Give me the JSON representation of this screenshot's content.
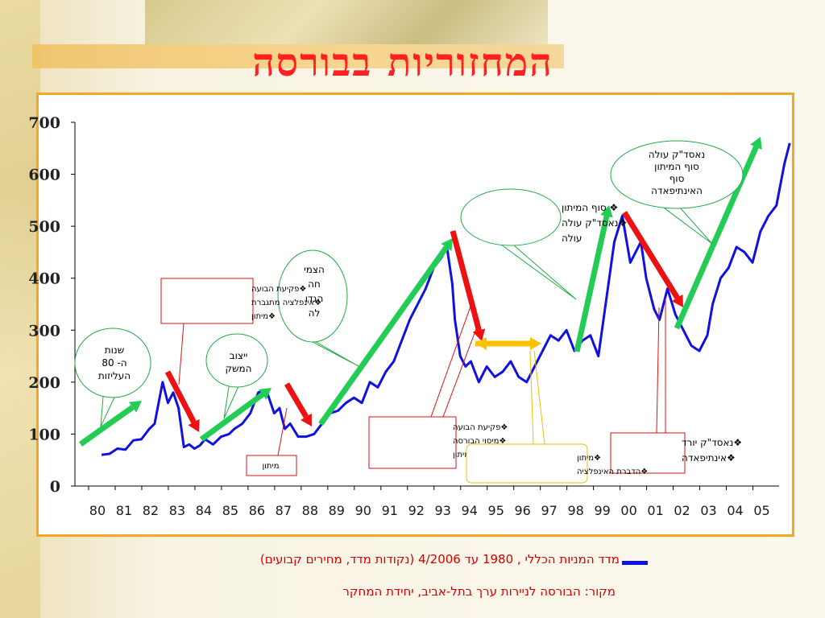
{
  "title": "המחזוריות בבורסה",
  "caption": "מדד המניות הכללי , 1980 עד 4/2006 (נקודות מדד, מחירים קבועים)",
  "source": "מקור: הבורסה לניירות ערך בתל-אביב, יחידת המחקר",
  "colors": {
    "line": "#1010e0",
    "up": "#22cc55",
    "down": "#ee1111",
    "flat": "#ffc000",
    "title": "#ff2020"
  },
  "chart_data": {
    "type": "line",
    "title": "",
    "xlabel": "",
    "ylabel": "",
    "ylim": [
      0,
      700
    ],
    "y_ticks": [
      "0",
      "100",
      "200",
      "300",
      "400",
      "500",
      "600",
      "700"
    ],
    "x_ticks": [
      "80",
      "81",
      "82",
      "83",
      "84",
      "85",
      "86",
      "87",
      "88",
      "89",
      "90",
      "91",
      "92",
      "93",
      "94",
      "95",
      "96",
      "97",
      "98",
      "99",
      "00",
      "01",
      "02",
      "03",
      "04",
      "05"
    ],
    "series": [
      {
        "name": "",
        "x": [
          1980.0,
          1980.3,
          1980.6,
          1980.9,
          1981.2,
          1981.5,
          1981.8,
          1982.0,
          1982.3,
          1982.5,
          1982.7,
          1982.9,
          1983.1,
          1983.3,
          1983.5,
          1983.7,
          1983.9,
          1984.2,
          1984.5,
          1984.8,
          1985.0,
          1985.3,
          1985.6,
          1985.9,
          1986.2,
          1986.5,
          1986.7,
          1986.9,
          1987.1,
          1987.4,
          1987.7,
          1988.0,
          1988.3,
          1988.6,
          1988.9,
          1989.2,
          1989.5,
          1989.8,
          1990.1,
          1990.4,
          1990.7,
          1991.0,
          1991.3,
          1991.6,
          1991.9,
          1992.2,
          1992.5,
          1992.8,
          1993.0,
          1993.2,
          1993.3,
          1993.5,
          1993.7,
          1993.9,
          1994.2,
          1994.5,
          1994.8,
          1995.1,
          1995.4,
          1995.7,
          1996.0,
          1996.3,
          1996.6,
          1996.9,
          1997.2,
          1997.5,
          1997.8,
          1998.1,
          1998.4,
          1998.7,
          1999.0,
          1999.3,
          1999.6,
          1999.9,
          2000.1,
          2000.3,
          2000.5,
          2000.8,
          2001.0,
          2001.3,
          2001.6,
          2001.9,
          2002.2,
          2002.5,
          2002.8,
          2003.0,
          2003.3,
          2003.6,
          2003.9,
          2004.2,
          2004.5,
          2004.8,
          2005.1,
          2005.4,
          2005.7,
          2005.9
        ],
        "values": [
          60,
          62,
          72,
          70,
          88,
          90,
          110,
          120,
          200,
          160,
          180,
          150,
          75,
          80,
          72,
          78,
          90,
          80,
          95,
          100,
          110,
          120,
          140,
          180,
          185,
          140,
          150,
          110,
          120,
          95,
          95,
          100,
          120,
          140,
          145,
          160,
          170,
          160,
          200,
          190,
          220,
          240,
          280,
          320,
          350,
          380,
          420,
          440,
          460,
          390,
          320,
          250,
          230,
          240,
          200,
          230,
          210,
          220,
          240,
          210,
          200,
          230,
          260,
          290,
          280,
          300,
          260,
          280,
          290,
          250,
          360,
          470,
          520,
          430,
          450,
          470,
          400,
          340,
          320,
          380,
          330,
          300,
          270,
          260,
          290,
          350,
          400,
          420,
          460,
          450,
          430,
          490,
          520,
          540,
          620,
          660
        ]
      }
    ],
    "annotations": [
      {
        "id": "n80",
        "text": "שנות ה- 80 העליזות"
      },
      {
        "id": "bubble1",
        "items": [
          "פקיעת הבועה",
          "אינפלציה מתגברת",
          "מיתון"
        ]
      },
      {
        "id": "stab",
        "text": "ייצוב המשק"
      },
      {
        "id": "recession87",
        "text": "מיתון"
      },
      {
        "id": "growth",
        "text": "הצמיחה הגדולה"
      },
      {
        "id": "bubble93",
        "items": [
          "פקיעת הבועה",
          "מיסוי הבורסה",
          "תחילת מיתון"
        ]
      },
      {
        "id": "end_recession",
        "items": [
          "סוף המיתון",
          "נאסד\"ק עולה"
        ]
      },
      {
        "id": "recession96",
        "items": [
          "מיתון",
          "הדברת האינפלציה"
        ]
      },
      {
        "id": "nasdaq_up",
        "text": "נאסד\"ק עולה סוף המיתון סוף האינתיפאדה"
      },
      {
        "id": "nasdaq_down",
        "items": [
          "נאסד\"ק יורד",
          "אינתיפאדה"
        ]
      }
    ]
  }
}
